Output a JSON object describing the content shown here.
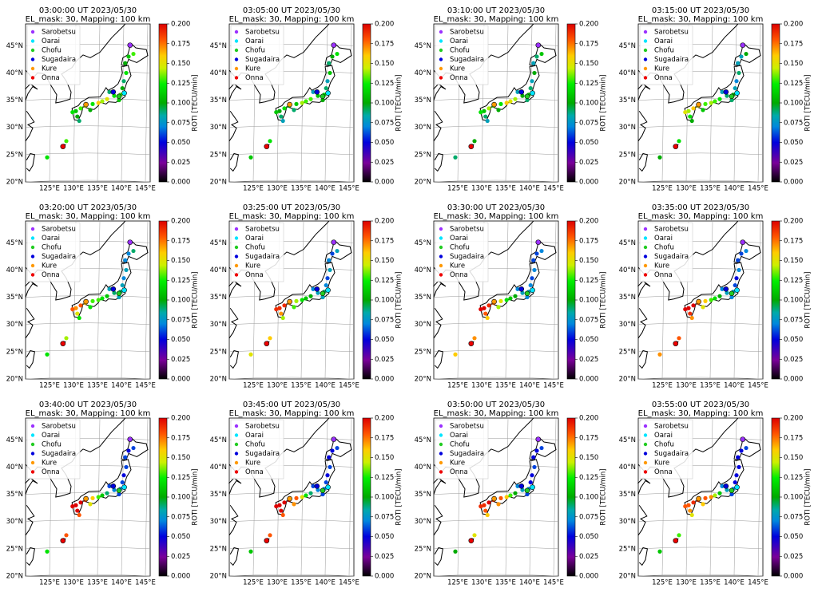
{
  "panels": [
    {
      "title": "03:00:00 UT 2023/05/30",
      "subtitle": "EL_mask: 30, Mapping: 100 km",
      "roti": [
        0.11,
        0.13,
        0.1,
        0.12,
        0.09,
        0.1,
        0.13,
        0.12,
        0.15,
        0.14,
        0.16,
        0.12,
        0.14,
        0.13,
        0.11,
        0.1,
        0.09,
        0.12,
        0.1,
        0.11,
        0.09,
        0.13,
        0.16,
        0.12
      ]
    },
    {
      "title": "03:05:00 UT 2023/05/30",
      "subtitle": "EL_mask: 30, Mapping: 100 km",
      "roti": [
        0.1,
        0.12,
        0.09,
        0.11,
        0.08,
        0.09,
        0.12,
        0.11,
        0.13,
        0.13,
        0.14,
        0.11,
        0.12,
        0.12,
        0.1,
        0.09,
        0.08,
        0.11,
        0.09,
        0.1,
        0.08,
        0.12,
        0.15,
        0.11
      ]
    },
    {
      "title": "03:10:00 UT 2023/05/30",
      "subtitle": "EL_mask: 30, Mapping: 100 km",
      "roti": [
        0.09,
        0.11,
        0.08,
        0.1,
        0.08,
        0.09,
        0.11,
        0.1,
        0.14,
        0.15,
        0.16,
        0.12,
        0.13,
        0.14,
        0.11,
        0.09,
        0.08,
        0.12,
        0.1,
        0.09,
        0.08,
        0.1,
        0.17,
        0.09
      ]
    },
    {
      "title": "03:15:00 UT 2023/05/30",
      "subtitle": "EL_mask: 30, Mapping: 100 km",
      "roti": [
        0.08,
        0.1,
        0.08,
        0.09,
        0.07,
        0.08,
        0.1,
        0.09,
        0.12,
        0.13,
        0.14,
        0.13,
        0.15,
        0.16,
        0.14,
        0.12,
        0.1,
        0.15,
        0.11,
        0.09,
        0.08,
        0.12,
        0.18,
        0.1
      ]
    },
    {
      "title": "03:20:00 UT 2023/05/30",
      "subtitle": "EL_mask: 30, Mapping: 100 km",
      "roti": [
        0.07,
        0.09,
        0.07,
        0.08,
        0.07,
        0.08,
        0.09,
        0.09,
        0.11,
        0.12,
        0.13,
        0.13,
        0.16,
        0.18,
        0.17,
        0.15,
        0.12,
        0.18,
        0.12,
        0.08,
        0.08,
        0.14,
        0.19,
        0.12
      ]
    },
    {
      "title": "03:25:00 UT 2023/05/30",
      "subtitle": "EL_mask: 30, Mapping: 100 km",
      "roti": [
        0.06,
        0.08,
        0.07,
        0.08,
        0.06,
        0.07,
        0.09,
        0.08,
        0.1,
        0.11,
        0.12,
        0.14,
        0.17,
        0.19,
        0.19,
        0.17,
        0.14,
        0.19,
        0.13,
        0.08,
        0.07,
        0.16,
        0.19,
        0.15
      ]
    },
    {
      "title": "03:30:00 UT 2023/05/30",
      "subtitle": "EL_mask: 30, Mapping: 100 km",
      "roti": [
        0.06,
        0.07,
        0.06,
        0.07,
        0.06,
        0.07,
        0.08,
        0.08,
        0.1,
        0.11,
        0.12,
        0.15,
        0.18,
        0.19,
        0.2,
        0.18,
        0.16,
        0.2,
        0.14,
        0.07,
        0.07,
        0.17,
        0.2,
        0.16
      ]
    },
    {
      "title": "03:35:00 UT 2023/05/30",
      "subtitle": "EL_mask: 30, Mapping: 100 km",
      "roti": [
        0.06,
        0.07,
        0.06,
        0.07,
        0.05,
        0.06,
        0.08,
        0.08,
        0.1,
        0.12,
        0.13,
        0.16,
        0.18,
        0.2,
        0.2,
        0.19,
        0.17,
        0.2,
        0.15,
        0.07,
        0.07,
        0.18,
        0.2,
        0.17
      ]
    },
    {
      "title": "03:40:00 UT 2023/05/30",
      "subtitle": "EL_mask: 30, Mapping: 100 km",
      "roti": [
        0.05,
        0.06,
        0.06,
        0.06,
        0.05,
        0.06,
        0.07,
        0.07,
        0.09,
        0.11,
        0.13,
        0.16,
        0.19,
        0.2,
        0.2,
        0.2,
        0.18,
        0.2,
        0.15,
        0.06,
        0.06,
        0.18,
        0.2,
        0.12
      ]
    },
    {
      "title": "03:45:00 UT 2023/05/30",
      "subtitle": "EL_mask: 30, Mapping: 100 km",
      "roti": [
        0.05,
        0.06,
        0.05,
        0.06,
        0.05,
        0.06,
        0.07,
        0.07,
        0.09,
        0.12,
        0.15,
        0.18,
        0.2,
        0.2,
        0.2,
        0.2,
        0.18,
        0.2,
        0.17,
        0.06,
        0.06,
        0.18,
        0.2,
        0.11
      ]
    },
    {
      "title": "03:50:00 UT 2023/05/30",
      "subtitle": "EL_mask: 30, Mapping: 100 km",
      "roti": [
        0.05,
        0.06,
        0.05,
        0.06,
        0.05,
        0.05,
        0.07,
        0.08,
        0.1,
        0.13,
        0.16,
        0.18,
        0.19,
        0.2,
        0.19,
        0.18,
        0.16,
        0.19,
        0.17,
        0.06,
        0.07,
        0.15,
        0.18,
        0.1
      ]
    },
    {
      "title": "03:55:00 UT 2023/05/30",
      "subtitle": "EL_mask: 30, Mapping: 100 km",
      "roti": [
        0.05,
        0.06,
        0.05,
        0.05,
        0.05,
        0.05,
        0.07,
        0.08,
        0.11,
        0.14,
        0.17,
        0.18,
        0.19,
        0.19,
        0.18,
        0.17,
        0.15,
        0.18,
        0.16,
        0.06,
        0.07,
        0.13,
        0.17,
        0.11
      ]
    }
  ],
  "points": [
    [
      141.5,
      43.0
    ],
    [
      142.5,
      43.5
    ],
    [
      140.8,
      41.8
    ],
    [
      141.0,
      40.0
    ],
    [
      140.5,
      38.5
    ],
    [
      140.2,
      37.2
    ],
    [
      139.8,
      36.0
    ],
    [
      138.5,
      35.8
    ],
    [
      137.0,
      35.2
    ],
    [
      136.0,
      34.8
    ],
    [
      135.2,
      34.5
    ],
    [
      134.0,
      34.3
    ],
    [
      132.5,
      34.0
    ],
    [
      131.5,
      33.5
    ],
    [
      130.5,
      33.0
    ],
    [
      130.8,
      32.0
    ],
    [
      131.2,
      31.2
    ],
    [
      129.8,
      32.8
    ],
    [
      133.5,
      33.2
    ],
    [
      139.5,
      35.0
    ],
    [
      137.5,
      36.5
    ],
    [
      128.5,
      27.5
    ],
    [
      127.8,
      26.4
    ],
    [
      124.5,
      24.5
    ]
  ],
  "stations": [
    {
      "name": "Sarobetsu",
      "color": "#9b30ff",
      "lon": 141.8,
      "lat": 45.1
    },
    {
      "name": "Oarai",
      "color": "#00e5ff",
      "lon": 140.6,
      "lat": 36.3
    },
    {
      "name": "Chofu",
      "color": "#22cc22",
      "lon": 139.5,
      "lat": 35.7
    },
    {
      "name": "Sugadaira",
      "color": "#0000dd",
      "lon": 138.3,
      "lat": 36.5
    },
    {
      "name": "Kure",
      "color": "#ff9900",
      "lon": 132.6,
      "lat": 34.2
    },
    {
      "name": "Onna",
      "color": "#ee0000",
      "lon": 127.8,
      "lat": 26.5
    }
  ],
  "lonlim": [
    120,
    146
  ],
  "latlim": [
    20,
    49
  ],
  "lon_ticks": [
    {
      "value": 125,
      "label": "125°E"
    },
    {
      "value": 130,
      "label": "130°E"
    },
    {
      "value": 135,
      "label": "135°E"
    },
    {
      "value": 140,
      "label": "140°E"
    },
    {
      "value": 145,
      "label": "145°E"
    }
  ],
  "lat_ticks": [
    {
      "value": 20,
      "label": "20°N"
    },
    {
      "value": 25,
      "label": "25°N"
    },
    {
      "value": 30,
      "label": "30°N"
    },
    {
      "value": 35,
      "label": "35°N"
    },
    {
      "value": 40,
      "label": "40°N"
    },
    {
      "value": 45,
      "label": "45°N"
    }
  ],
  "colorbar": {
    "label": "ROTI [TECU/min]",
    "lim": [
      0,
      0.2
    ],
    "ticks": [
      {
        "value": 0,
        "label": "0.000"
      },
      {
        "value": 0.025,
        "label": "0.025"
      },
      {
        "value": 0.05,
        "label": "0.050"
      },
      {
        "value": 0.075,
        "label": "0.075"
      },
      {
        "value": 0.1,
        "label": "0.100"
      },
      {
        "value": 0.125,
        "label": "0.125"
      },
      {
        "value": 0.15,
        "label": "0.150"
      },
      {
        "value": 0.175,
        "label": "0.175"
      },
      {
        "value": 0.2,
        "label": "0.200"
      }
    ]
  }
}
